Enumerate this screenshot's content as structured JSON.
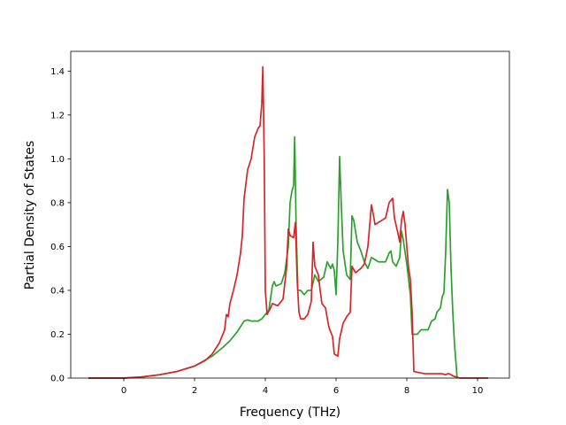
{
  "chart_data": {
    "type": "line",
    "title": "",
    "xlabel": "Frequency (THz)",
    "ylabel": "Partial Density of States",
    "xlim": [
      -1.5,
      10.9
    ],
    "ylim": [
      0.0,
      1.49
    ],
    "x_ticks": [
      0,
      2,
      4,
      6,
      8,
      10
    ],
    "x_tick_labels": [
      "0",
      "2",
      "4",
      "6",
      "8",
      "10"
    ],
    "y_ticks": [
      0.0,
      0.2,
      0.4,
      0.6,
      0.8,
      1.0,
      1.2,
      1.4
    ],
    "y_tick_labels": [
      "0.0",
      "0.2",
      "0.4",
      "0.6",
      "0.8",
      "1.0",
      "1.2",
      "1.4"
    ],
    "grid": false,
    "legend": "none",
    "series": [
      {
        "color": "#2ca02c",
        "points": [
          [
            -1.0,
            0.0
          ],
          [
            0.0,
            0.0
          ],
          [
            0.5,
            0.005
          ],
          [
            1.0,
            0.015
          ],
          [
            1.5,
            0.03
          ],
          [
            2.0,
            0.055
          ],
          [
            2.5,
            0.1
          ],
          [
            2.8,
            0.14
          ],
          [
            3.0,
            0.17
          ],
          [
            3.2,
            0.21
          ],
          [
            3.4,
            0.26
          ],
          [
            3.5,
            0.265
          ],
          [
            3.6,
            0.26
          ],
          [
            3.8,
            0.26
          ],
          [
            3.9,
            0.27
          ],
          [
            4.0,
            0.29
          ],
          [
            4.1,
            0.31
          ],
          [
            4.2,
            0.42
          ],
          [
            4.25,
            0.44
          ],
          [
            4.3,
            0.42
          ],
          [
            4.45,
            0.43
          ],
          [
            4.55,
            0.48
          ],
          [
            4.65,
            0.6
          ],
          [
            4.7,
            0.8
          ],
          [
            4.75,
            0.85
          ],
          [
            4.8,
            0.88
          ],
          [
            4.83,
            1.1
          ],
          [
            4.87,
            0.7
          ],
          [
            4.92,
            0.4
          ],
          [
            5.0,
            0.4
          ],
          [
            5.1,
            0.38
          ],
          [
            5.2,
            0.4
          ],
          [
            5.3,
            0.4
          ],
          [
            5.4,
            0.47
          ],
          [
            5.5,
            0.44
          ],
          [
            5.65,
            0.46
          ],
          [
            5.75,
            0.53
          ],
          [
            5.85,
            0.5
          ],
          [
            5.9,
            0.52
          ],
          [
            5.95,
            0.49
          ],
          [
            6.0,
            0.38
          ],
          [
            6.05,
            0.62
          ],
          [
            6.1,
            1.01
          ],
          [
            6.15,
            0.78
          ],
          [
            6.2,
            0.58
          ],
          [
            6.3,
            0.47
          ],
          [
            6.4,
            0.45
          ],
          [
            6.45,
            0.74
          ],
          [
            6.5,
            0.72
          ],
          [
            6.6,
            0.62
          ],
          [
            6.7,
            0.58
          ],
          [
            6.8,
            0.53
          ],
          [
            6.9,
            0.5
          ],
          [
            7.0,
            0.55
          ],
          [
            7.1,
            0.54
          ],
          [
            7.2,
            0.53
          ],
          [
            7.3,
            0.53
          ],
          [
            7.4,
            0.53
          ],
          [
            7.5,
            0.57
          ],
          [
            7.55,
            0.58
          ],
          [
            7.6,
            0.53
          ],
          [
            7.7,
            0.51
          ],
          [
            7.8,
            0.55
          ],
          [
            7.85,
            0.67
          ],
          [
            7.9,
            0.63
          ],
          [
            8.0,
            0.52
          ],
          [
            8.1,
            0.38
          ],
          [
            8.15,
            0.2
          ],
          [
            8.3,
            0.2
          ],
          [
            8.4,
            0.22
          ],
          [
            8.6,
            0.22
          ],
          [
            8.7,
            0.26
          ],
          [
            8.8,
            0.27
          ],
          [
            8.85,
            0.3
          ],
          [
            8.95,
            0.32
          ],
          [
            9.0,
            0.37
          ],
          [
            9.05,
            0.39
          ],
          [
            9.1,
            0.58
          ],
          [
            9.15,
            0.86
          ],
          [
            9.2,
            0.8
          ],
          [
            9.25,
            0.5
          ],
          [
            9.3,
            0.3
          ],
          [
            9.35,
            0.15
          ],
          [
            9.4,
            0.05
          ],
          [
            9.42,
            0.0
          ]
        ]
      },
      {
        "color": "#d62728",
        "points": [
          [
            -1.0,
            0.0
          ],
          [
            0.0,
            0.0
          ],
          [
            0.5,
            0.005
          ],
          [
            1.0,
            0.015
          ],
          [
            1.5,
            0.03
          ],
          [
            2.0,
            0.055
          ],
          [
            2.3,
            0.08
          ],
          [
            2.5,
            0.11
          ],
          [
            2.7,
            0.16
          ],
          [
            2.85,
            0.22
          ],
          [
            2.9,
            0.29
          ],
          [
            2.95,
            0.28
          ],
          [
            3.0,
            0.34
          ],
          [
            3.1,
            0.4
          ],
          [
            3.2,
            0.47
          ],
          [
            3.3,
            0.57
          ],
          [
            3.35,
            0.65
          ],
          [
            3.4,
            0.82
          ],
          [
            3.5,
            0.95
          ],
          [
            3.6,
            1.0
          ],
          [
            3.65,
            1.05
          ],
          [
            3.7,
            1.1
          ],
          [
            3.8,
            1.14
          ],
          [
            3.85,
            1.15
          ],
          [
            3.9,
            1.25
          ],
          [
            3.93,
            1.42
          ],
          [
            3.97,
            1.0
          ],
          [
            4.0,
            0.4
          ],
          [
            4.05,
            0.29
          ],
          [
            4.15,
            0.32
          ],
          [
            4.2,
            0.34
          ],
          [
            4.35,
            0.33
          ],
          [
            4.5,
            0.36
          ],
          [
            4.6,
            0.5
          ],
          [
            4.65,
            0.68
          ],
          [
            4.7,
            0.65
          ],
          [
            4.8,
            0.64
          ],
          [
            4.85,
            0.71
          ],
          [
            4.9,
            0.45
          ],
          [
            4.95,
            0.3
          ],
          [
            5.0,
            0.27
          ],
          [
            5.1,
            0.27
          ],
          [
            5.2,
            0.29
          ],
          [
            5.3,
            0.35
          ],
          [
            5.35,
            0.62
          ],
          [
            5.4,
            0.51
          ],
          [
            5.5,
            0.47
          ],
          [
            5.55,
            0.4
          ],
          [
            5.6,
            0.34
          ],
          [
            5.7,
            0.32
          ],
          [
            5.8,
            0.23
          ],
          [
            5.9,
            0.19
          ],
          [
            5.95,
            0.11
          ],
          [
            6.05,
            0.1
          ],
          [
            6.1,
            0.18
          ],
          [
            6.2,
            0.25
          ],
          [
            6.3,
            0.28
          ],
          [
            6.4,
            0.3
          ],
          [
            6.45,
            0.51
          ],
          [
            6.55,
            0.48
          ],
          [
            6.7,
            0.5
          ],
          [
            6.8,
            0.52
          ],
          [
            6.9,
            0.6
          ],
          [
            7.0,
            0.79
          ],
          [
            7.05,
            0.75
          ],
          [
            7.1,
            0.7
          ],
          [
            7.3,
            0.72
          ],
          [
            7.4,
            0.73
          ],
          [
            7.5,
            0.8
          ],
          [
            7.6,
            0.82
          ],
          [
            7.65,
            0.73
          ],
          [
            7.75,
            0.66
          ],
          [
            7.8,
            0.62
          ],
          [
            7.85,
            0.72
          ],
          [
            7.9,
            0.76
          ],
          [
            7.95,
            0.7
          ],
          [
            8.05,
            0.5
          ],
          [
            8.1,
            0.45
          ],
          [
            8.15,
            0.3
          ],
          [
            8.2,
            0.03
          ],
          [
            8.5,
            0.02
          ],
          [
            8.8,
            0.02
          ],
          [
            9.0,
            0.02
          ],
          [
            9.1,
            0.015
          ],
          [
            9.15,
            0.02
          ],
          [
            9.2,
            0.02
          ],
          [
            9.3,
            0.01
          ],
          [
            9.4,
            0.005
          ],
          [
            9.5,
            0.0
          ],
          [
            10.3,
            0.0
          ]
        ]
      }
    ]
  }
}
